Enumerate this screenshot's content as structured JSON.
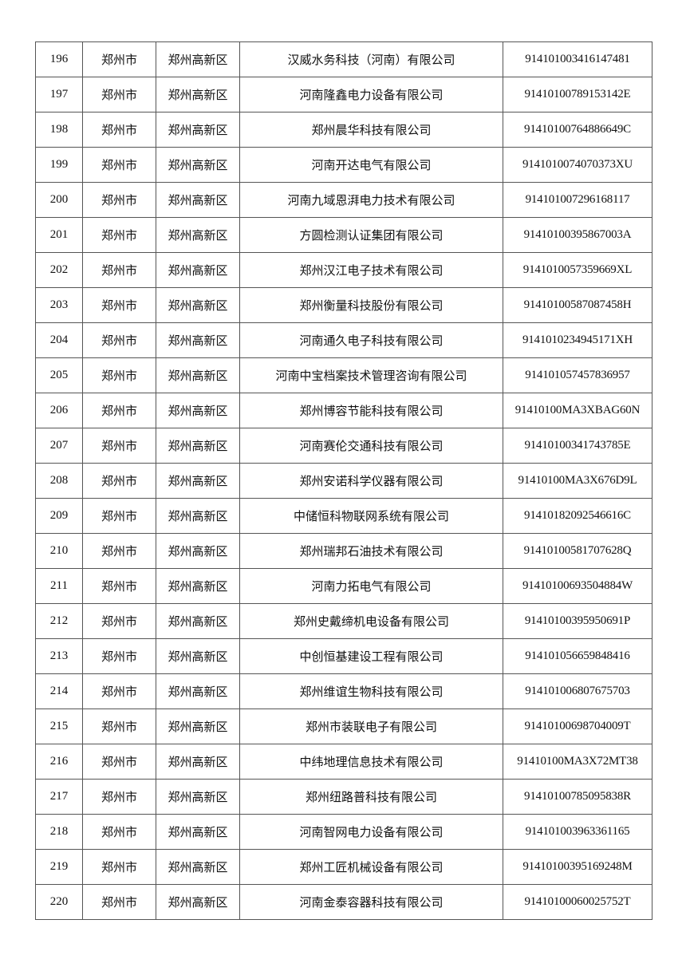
{
  "rows": [
    {
      "no": "196",
      "city": "郑州市",
      "district": "郑州高新区",
      "company": "汉威水务科技（河南）有限公司",
      "code": "914101003416147481"
    },
    {
      "no": "197",
      "city": "郑州市",
      "district": "郑州高新区",
      "company": "河南隆鑫电力设备有限公司",
      "code": "91410100789153142E"
    },
    {
      "no": "198",
      "city": "郑州市",
      "district": "郑州高新区",
      "company": "郑州晨华科技有限公司",
      "code": "91410100764886649C"
    },
    {
      "no": "199",
      "city": "郑州市",
      "district": "郑州高新区",
      "company": "河南开达电气有限公司",
      "code": "9141010074070373XU"
    },
    {
      "no": "200",
      "city": "郑州市",
      "district": "郑州高新区",
      "company": "河南九域恩湃电力技术有限公司",
      "code": "914101007296168117"
    },
    {
      "no": "201",
      "city": "郑州市",
      "district": "郑州高新区",
      "company": "方圆检测认证集团有限公司",
      "code": "91410100395867003A"
    },
    {
      "no": "202",
      "city": "郑州市",
      "district": "郑州高新区",
      "company": "郑州汉江电子技术有限公司",
      "code": "9141010057359669XL"
    },
    {
      "no": "203",
      "city": "郑州市",
      "district": "郑州高新区",
      "company": "郑州衡量科技股份有限公司",
      "code": "91410100587087458H"
    },
    {
      "no": "204",
      "city": "郑州市",
      "district": "郑州高新区",
      "company": "河南通久电子科技有限公司",
      "code": "9141010234945171XH"
    },
    {
      "no": "205",
      "city": "郑州市",
      "district": "郑州高新区",
      "company": "河南中宝档案技术管理咨询有限公司",
      "code": "914101057457836957"
    },
    {
      "no": "206",
      "city": "郑州市",
      "district": "郑州高新区",
      "company": "郑州博容节能科技有限公司",
      "code": "91410100MA3XBAG60N"
    },
    {
      "no": "207",
      "city": "郑州市",
      "district": "郑州高新区",
      "company": "河南赛伦交通科技有限公司",
      "code": "91410100341743785E"
    },
    {
      "no": "208",
      "city": "郑州市",
      "district": "郑州高新区",
      "company": "郑州安诺科学仪器有限公司",
      "code": "91410100MA3X676D9L"
    },
    {
      "no": "209",
      "city": "郑州市",
      "district": "郑州高新区",
      "company": "中储恒科物联网系统有限公司",
      "code": "91410182092546616C"
    },
    {
      "no": "210",
      "city": "郑州市",
      "district": "郑州高新区",
      "company": "郑州瑞邦石油技术有限公司",
      "code": "91410100581707628Q"
    },
    {
      "no": "211",
      "city": "郑州市",
      "district": "郑州高新区",
      "company": "河南力拓电气有限公司",
      "code": "91410100693504884W"
    },
    {
      "no": "212",
      "city": "郑州市",
      "district": "郑州高新区",
      "company": "郑州史戴缔机电设备有限公司",
      "code": "91410100395950691P"
    },
    {
      "no": "213",
      "city": "郑州市",
      "district": "郑州高新区",
      "company": "中创恒基建设工程有限公司",
      "code": "914101056659848416"
    },
    {
      "no": "214",
      "city": "郑州市",
      "district": "郑州高新区",
      "company": "郑州维谊生物科技有限公司",
      "code": "914101006807675703"
    },
    {
      "no": "215",
      "city": "郑州市",
      "district": "郑州高新区",
      "company": "郑州市装联电子有限公司",
      "code": "91410100698704009T"
    },
    {
      "no": "216",
      "city": "郑州市",
      "district": "郑州高新区",
      "company": "中纬地理信息技术有限公司",
      "code": "91410100MA3X72MT38"
    },
    {
      "no": "217",
      "city": "郑州市",
      "district": "郑州高新区",
      "company": "郑州纽路普科技有限公司",
      "code": "91410100785095838R"
    },
    {
      "no": "218",
      "city": "郑州市",
      "district": "郑州高新区",
      "company": "河南智网电力设备有限公司",
      "code": "914101003963361165"
    },
    {
      "no": "219",
      "city": "郑州市",
      "district": "郑州高新区",
      "company": "郑州工匠机械设备有限公司",
      "code": "91410100395169248M"
    },
    {
      "no": "220",
      "city": "郑州市",
      "district": "郑州高新区",
      "company": "河南金泰容器科技有限公司",
      "code": "91410100060025752T"
    }
  ]
}
